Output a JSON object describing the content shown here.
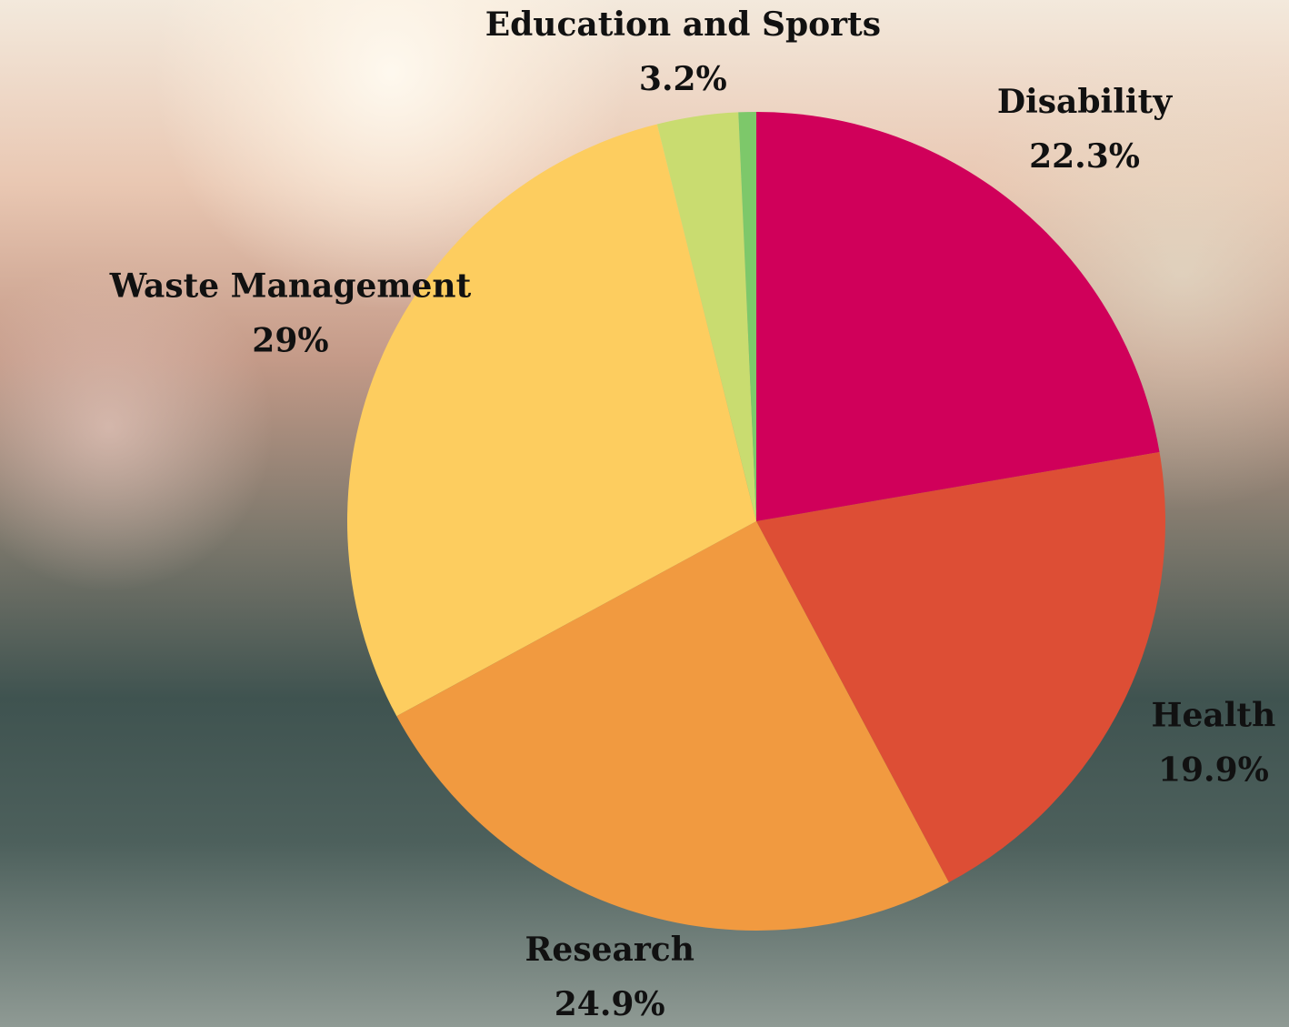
{
  "chart_data": {
    "type": "pie",
    "categories": [
      "Disability",
      "Health",
      "Research",
      "Waste Management",
      "Education and Sports",
      null
    ],
    "values": [
      22.3,
      19.9,
      24.9,
      29,
      3.2,
      0.7
    ],
    "value_labels": [
      "22.3%",
      "19.9%",
      "24.9%",
      "29%",
      "3.2%",
      null
    ],
    "colors": [
      "#d0005a",
      "#dd4e35",
      "#f19a40",
      "#fdcd5f",
      "#c9dc70",
      "#7dc86a"
    ]
  }
}
